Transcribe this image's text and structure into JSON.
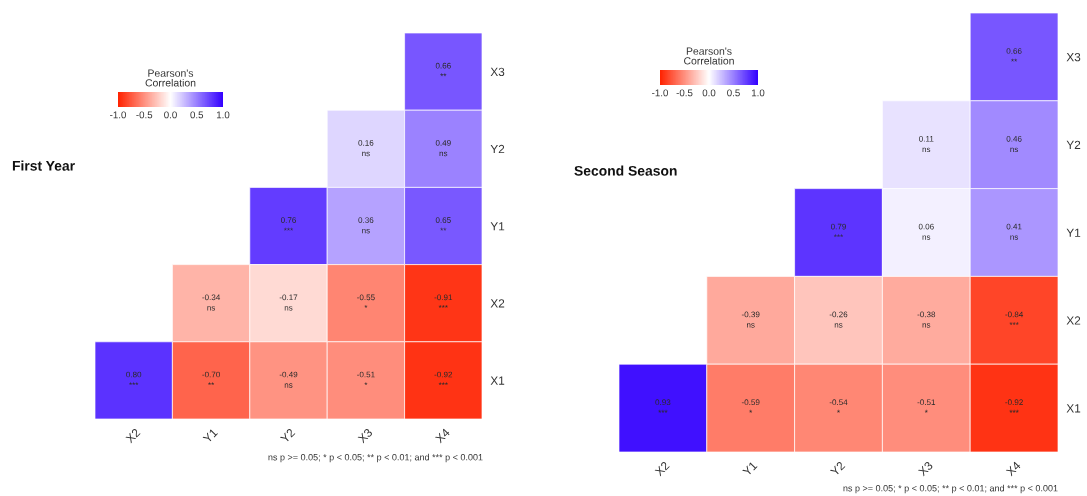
{
  "chart_data": [
    {
      "type": "heatmap",
      "title": "First Year",
      "clabel": "Pearson's\nCorrelation",
      "categories": [
        "X2",
        "Y1",
        "Y2",
        "X3",
        "X4"
      ],
      "y_categories": [
        "X3",
        "Y2",
        "Y1",
        "X2",
        "X1"
      ],
      "cells": [
        [
          null,
          null,
          null,
          null,
          0.66
        ],
        [
          null,
          null,
          null,
          0.16,
          0.49
        ],
        [
          null,
          null,
          0.76,
          0.36,
          0.65
        ],
        [
          null,
          -0.34,
          -0.17,
          -0.55,
          -0.91
        ],
        [
          0.8,
          -0.7,
          -0.49,
          -0.51,
          -0.92
        ]
      ],
      "cell_labels": [
        [
          null,
          null,
          null,
          null,
          "0.66\n**"
        ],
        [
          null,
          null,
          null,
          "0.16\nns",
          "0.49\nns"
        ],
        [
          null,
          null,
          "0.76\n***",
          "0.36\nns",
          "0.65\n**"
        ],
        [
          null,
          "-0.34\nns",
          "-0.17\nns",
          "-0.55\n*",
          "-0.91\n***"
        ],
        [
          "0.80\n***",
          "-0.70\n**",
          "-0.49\nns",
          "-0.51\n*",
          "-0.92\n***"
        ]
      ],
      "colors": [
        "#ff2200",
        "#ffffff",
        "#3300ff"
      ],
      "clim": [
        -1,
        1
      ],
      "cticks": [
        {
          "value": -1,
          "label": "-1.0"
        },
        {
          "value": -0.5,
          "label": "-0.5"
        },
        {
          "value": 0,
          "label": "0.0"
        },
        {
          "value": 0.5,
          "label": "0.5"
        },
        {
          "value": 1,
          "label": "1.0"
        }
      ],
      "annotations": [
        "ns p >= 0.05; * p < 0.05; ** p < 0.01; and *** p < 0.001"
      ]
    },
    {
      "type": "heatmap",
      "title": "Second Season",
      "clabel": "Pearson's\nCorrelation",
      "categories": [
        "X2",
        "Y1",
        "Y2",
        "X3",
        "X4"
      ],
      "y_categories": [
        "X3",
        "Y2",
        "Y1",
        "X2",
        "X1"
      ],
      "cells": [
        [
          null,
          null,
          null,
          null,
          0.66
        ],
        [
          null,
          null,
          null,
          0.11,
          0.46
        ],
        [
          null,
          null,
          0.79,
          0.06,
          0.41
        ],
        [
          null,
          -0.39,
          -0.26,
          -0.38,
          -0.84
        ],
        [
          0.93,
          -0.59,
          -0.54,
          -0.51,
          -0.92
        ]
      ],
      "cell_labels": [
        [
          null,
          null,
          null,
          null,
          "0.66\n**"
        ],
        [
          null,
          null,
          null,
          "0.11\nns",
          "0.46\nns"
        ],
        [
          null,
          null,
          "0.79\n***",
          "0.06\nns",
          "0.41\nns"
        ],
        [
          null,
          "-0.39\nns",
          "-0.26\nns",
          "-0.38\nns",
          "-0.84\n***"
        ],
        [
          "0.93\n***",
          "-0.59\n*",
          "-0.54\n*",
          "-0.51\n*",
          "-0.92\n***"
        ]
      ],
      "colors": [
        "#ff2200",
        "#ffffff",
        "#3300ff"
      ],
      "clim": [
        -1,
        1
      ],
      "cticks": [
        {
          "value": -1,
          "label": "-1.0"
        },
        {
          "value": -0.5,
          "label": "-0.5"
        },
        {
          "value": 0,
          "label": "0.0"
        },
        {
          "value": 0.5,
          "label": "0.5"
        },
        {
          "value": 1,
          "label": "1.0"
        }
      ],
      "annotations": [
        "ns p >= 0.05; * p < 0.05; ** p < 0.01; and *** p < 0.001"
      ]
    }
  ]
}
